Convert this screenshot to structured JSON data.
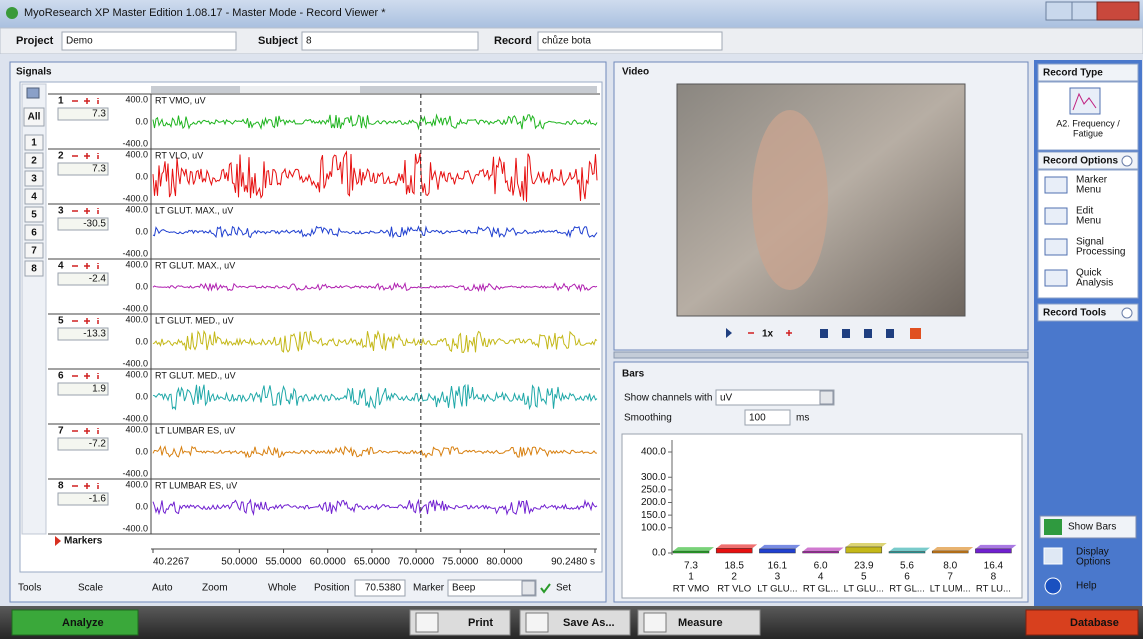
{
  "window": {
    "title": "MyoResearch XP Master Edition 1.08.17 - Master Mode - Record Viewer *"
  },
  "header": {
    "project_label": "Project",
    "project": "Demo",
    "subject_label": "Subject",
    "subject": "8",
    "record_label": "Record",
    "record": "chůze bota"
  },
  "signals": {
    "title": "Signals",
    "all": "All",
    "buttons": [
      "1",
      "2",
      "3",
      "4",
      "5",
      "6",
      "7",
      "8"
    ],
    "scale": [
      "400.0",
      "0.0",
      "-400.0"
    ],
    "channels": [
      {
        "number": "1",
        "value": "7.3",
        "name": "RT VMO, uV",
        "color": "#1fb41f"
      },
      {
        "number": "2",
        "value": "7.3",
        "name": "RT VLO, uV",
        "color": "#e61010"
      },
      {
        "number": "3",
        "value": "-30.5",
        "name": "LT GLUT. MAX., uV",
        "color": "#2040d0"
      },
      {
        "number": "4",
        "value": "-2.4",
        "name": "RT GLUT. MAX., uV",
        "color": "#b020b0"
      },
      {
        "number": "5",
        "value": "-13.3",
        "name": "LT GLUT. MED., uV",
        "color": "#c4b818"
      },
      {
        "number": "6",
        "value": "1.9",
        "name": "RT GLUT. MED., uV",
        "color": "#1fa8a8"
      },
      {
        "number": "7",
        "value": "-7.2",
        "name": "LT LUMBAR ES, uV",
        "color": "#d88010"
      },
      {
        "number": "8",
        "value": "-1.6",
        "name": "RT LUMBAR ES, uV",
        "color": "#7020d0"
      }
    ],
    "markers": "Markers",
    "time_ticks": [
      {
        "value": 40.2267,
        "label": "40.2267"
      },
      {
        "value": 50,
        "label": "50.0000"
      },
      {
        "value": 55,
        "label": "55.0000"
      },
      {
        "value": 60,
        "label": "60.0000"
      },
      {
        "value": 65,
        "label": "65.0000"
      },
      {
        "value": 70,
        "label": "70.0000"
      },
      {
        "value": 75,
        "label": "75.0000"
      },
      {
        "value": 80,
        "label": "80.0000"
      },
      {
        "value": 90.248,
        "label": "90.2480 s"
      }
    ]
  },
  "tools": {
    "label": "Tools",
    "scale": "Scale",
    "auto": "Auto",
    "zoom": "Zoom",
    "whole": "Whole",
    "position_label": "Position",
    "position": "70.5380",
    "marker_label": "Marker",
    "marker": "Beep",
    "set": "Set"
  },
  "video": {
    "title": "Video",
    "speed": "1x"
  },
  "bars": {
    "title": "Bars",
    "units_label": "Show channels with units",
    "units": "uV",
    "smoothing_label": "Smoothing",
    "smoothing": "100",
    "smoothing_unit": "ms"
  },
  "chart_data": {
    "type": "bar",
    "categories": [
      "RT VMO",
      "RT VLO",
      "LT GLU...",
      "RT GL...",
      "LT GLU...",
      "RT GL...",
      "LT LUM...",
      "RT LU..."
    ],
    "category_numbers": [
      "1",
      "2",
      "3",
      "4",
      "5",
      "6",
      "7",
      "8"
    ],
    "values": [
      7.3,
      18.5,
      16.1,
      6.0,
      23.9,
      5.6,
      8.0,
      16.4
    ],
    "value_labels": [
      "7.3",
      "18.5",
      "16.1",
      "6.0",
      "23.9",
      "5.6",
      "8.0",
      "16.4"
    ],
    "colors": [
      "#1fb41f",
      "#e61010",
      "#2040d0",
      "#b020b0",
      "#c4b818",
      "#1fa8a8",
      "#d88010",
      "#7020d0"
    ],
    "ylim": [
      0,
      400
    ],
    "yticks": [
      {
        "value": 0,
        "label": "0.0"
      },
      {
        "value": 100,
        "label": "100.0"
      },
      {
        "value": 150,
        "label": "150.0"
      },
      {
        "value": 200,
        "label": "200.0"
      },
      {
        "value": 250,
        "label": "250.0"
      },
      {
        "value": 300,
        "label": "300.0"
      },
      {
        "value": 400,
        "label": "400.0"
      }
    ]
  },
  "sidebar": {
    "record_type": "Record Type",
    "record_type_value": [
      "A2. Frequency /",
      "Fatigue"
    ],
    "record_options": "Record Options",
    "options": [
      [
        "Marker",
        "Menu"
      ],
      [
        "Edit",
        "Menu"
      ],
      [
        "Signal",
        "Processing"
      ],
      [
        "Quick",
        "Analysis"
      ]
    ],
    "record_tools": "Record Tools",
    "show_bars": "Show Bars",
    "display_options": [
      "Display",
      "Options"
    ],
    "help": "Help"
  },
  "taskbar": {
    "analyze": "Analyze",
    "print": "Print",
    "save_as": "Save As...",
    "measure": "Measure",
    "database": "Database"
  }
}
